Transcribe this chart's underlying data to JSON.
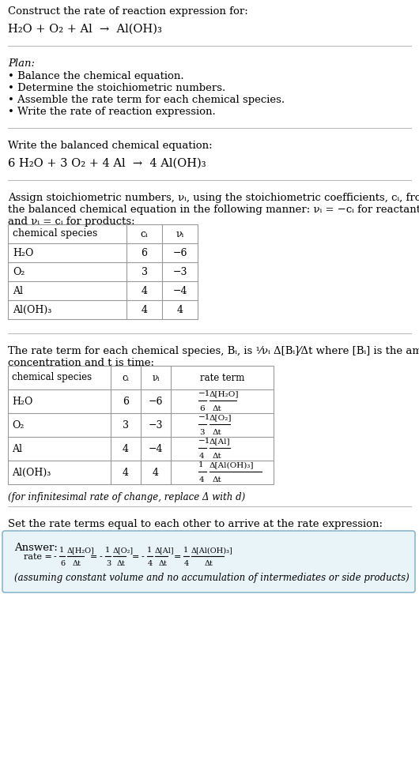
{
  "bg_color": "#ffffff",
  "text_color": "#000000",
  "figsize": [
    5.3,
    9.76
  ],
  "dpi": 100,
  "section1_line1": "Construct the rate of reaction expression for:",
  "section1_line2": "H₂O + O₂ + Al  →  Al(OH)₃",
  "section2_title": "Plan:",
  "section2_bullets": [
    "• Balance the chemical equation.",
    "• Determine the stoichiometric numbers.",
    "• Assemble the rate term for each chemical species.",
    "• Write the rate of reaction expression."
  ],
  "section3_line1": "Write the balanced chemical equation:",
  "section3_line2": "6 H₂O + 3 O₂ + 4 Al  →  4 Al(OH)₃",
  "section4_line1": "Assign stoichiometric numbers, νᵢ, using the stoichiometric coefficients, cᵢ, from",
  "section4_line2": "the balanced chemical equation in the following manner: νᵢ = −cᵢ for reactants",
  "section4_line3": "and νᵢ = cᵢ for products:",
  "table1_headers": [
    "chemical species",
    "cᵢ",
    "νᵢ"
  ],
  "table1_rows": [
    [
      "H₂O",
      "6",
      "−6"
    ],
    [
      "O₂",
      "3",
      "−3"
    ],
    [
      "Al",
      "4",
      "−4"
    ],
    [
      "Al(OH)₃",
      "4",
      "4"
    ]
  ],
  "section5_line1": "The rate term for each chemical species, Bᵢ, is",
  "section5_frac": "1/νᵢ  Δ[Bᵢ]/Δt",
  "section5_line1_end": " where [Bᵢ] is the amount",
  "section5_line2": "concentration and t is time:",
  "table2_headers": [
    "chemical species",
    "cᵢ",
    "νᵢ",
    "rate term"
  ],
  "table2_rows": [
    [
      "H₂O",
      "6",
      "−6",
      "−1/6  Δ[H₂O]/Δt"
    ],
    [
      "O₂",
      "3",
      "−3",
      "−1/3  Δ[O₂]/Δt"
    ],
    [
      "Al",
      "4",
      "−4",
      "−1/4  Δ[Al]/Δt"
    ],
    [
      "Al(OH)₃",
      "4",
      "4",
      "1/4  Δ[Al(OH)₃]/Δt"
    ]
  ],
  "infinitesimal_note": "(for infinitesimal rate of change, replace Δ with d)",
  "section6_intro": "Set the rate terms equal to each other to arrive at the rate expression:",
  "answer_label": "Answer:",
  "answer_rate_line": "rate = −1/6  Δ[H₂O]/Δt  =  −1/3  Δ[O₂]/Δt  =  −1/4  Δ[Al]/Δt  =  1/4  Δ[Al(OH)₃]/Δt",
  "answer_note": "(assuming constant volume and no accumulation of intermediates or side products)",
  "answer_box_color": "#e8f4f8",
  "answer_box_border": "#8ab8cc",
  "divider_color": "#bbbbbb",
  "table_border_color": "#999999"
}
